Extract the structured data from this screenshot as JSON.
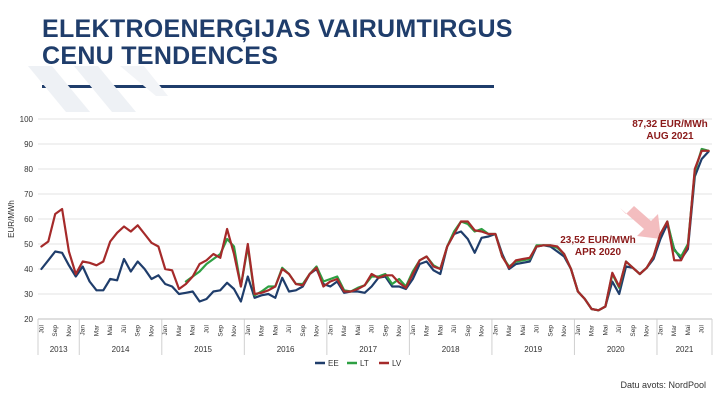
{
  "slide": {
    "title_line1": "ELEKTROENERĢIJAS VAIRUMTIRGUS",
    "title_line2": "CENU TENDENCES",
    "source": "Datu avots: NordPool"
  },
  "colors": {
    "title": "#1f3d6b",
    "EE": "#1f3d6b",
    "LT": "#2ea043",
    "LV": "#a52a2a",
    "annotation": "#8b1a1a",
    "arrow": "#f2b6b8"
  },
  "chart_data": {
    "type": "line",
    "ylabel": "EUR/MWh",
    "ylim": [
      20,
      100
    ],
    "yticks": [
      20,
      30,
      40,
      50,
      60,
      70,
      80,
      90,
      100
    ],
    "grid": true,
    "legend_position": "bottom",
    "month_ticks": [
      {
        "label": "Jūl",
        "index": 0
      },
      {
        "label": "Sep",
        "index": 2
      },
      {
        "label": "Nov",
        "index": 4
      },
      {
        "label": "Jan",
        "index": 6
      },
      {
        "label": "Mar",
        "index": 8
      },
      {
        "label": "Mai",
        "index": 10
      },
      {
        "label": "Jūl",
        "index": 12
      },
      {
        "label": "Sep",
        "index": 14
      },
      {
        "label": "Nov",
        "index": 16
      },
      {
        "label": "Jan",
        "index": 18
      },
      {
        "label": "Mar",
        "index": 20
      },
      {
        "label": "Mai",
        "index": 22
      },
      {
        "label": "Jūl",
        "index": 24
      },
      {
        "label": "Sep",
        "index": 26
      },
      {
        "label": "Nov",
        "index": 28
      },
      {
        "label": "Jan",
        "index": 30
      },
      {
        "label": "Mar",
        "index": 32
      },
      {
        "label": "Mai",
        "index": 34
      },
      {
        "label": "Jūl",
        "index": 36
      },
      {
        "label": "Sep",
        "index": 38
      },
      {
        "label": "Nov",
        "index": 40
      },
      {
        "label": "Jan",
        "index": 42
      },
      {
        "label": "Mar",
        "index": 44
      },
      {
        "label": "Mai",
        "index": 46
      },
      {
        "label": "Jūl",
        "index": 48
      },
      {
        "label": "Sep",
        "index": 50
      },
      {
        "label": "Nov",
        "index": 52
      },
      {
        "label": "Jan",
        "index": 54
      },
      {
        "label": "Mar",
        "index": 56
      },
      {
        "label": "Mai",
        "index": 58
      },
      {
        "label": "Jūl",
        "index": 60
      },
      {
        "label": "Sep",
        "index": 62
      },
      {
        "label": "Nov",
        "index": 64
      },
      {
        "label": "Jan",
        "index": 66
      },
      {
        "label": "Mar",
        "index": 68
      },
      {
        "label": "Mai",
        "index": 70
      },
      {
        "label": "Jūl",
        "index": 72
      },
      {
        "label": "Sep",
        "index": 74
      },
      {
        "label": "Nov",
        "index": 76
      },
      {
        "label": "Jan",
        "index": 78
      },
      {
        "label": "Mar",
        "index": 80
      },
      {
        "label": "Mai",
        "index": 82
      },
      {
        "label": "Jūl",
        "index": 84
      },
      {
        "label": "Sep",
        "index": 86
      },
      {
        "label": "Nov",
        "index": 88
      },
      {
        "label": "Jan",
        "index": 90
      },
      {
        "label": "Mar",
        "index": 92
      },
      {
        "label": "Mai",
        "index": 94
      },
      {
        "label": "Jūl",
        "index": 96
      }
    ],
    "years": [
      {
        "label": "2013",
        "start": 0,
        "end": 5
      },
      {
        "label": "2014",
        "start": 6,
        "end": 17
      },
      {
        "label": "2015",
        "start": 18,
        "end": 29
      },
      {
        "label": "2016",
        "start": 30,
        "end": 41
      },
      {
        "label": "2017",
        "start": 42,
        "end": 53
      },
      {
        "label": "2018",
        "start": 54,
        "end": 65
      },
      {
        "label": "2019",
        "start": 66,
        "end": 77
      },
      {
        "label": "2020",
        "start": 78,
        "end": 89
      },
      {
        "label": "2021",
        "start": 90,
        "end": 97
      }
    ],
    "series": [
      {
        "name": "EE",
        "values": [
          40,
          43.5,
          47,
          46.5,
          41.5,
          37,
          41,
          35,
          31.5,
          31.5,
          36,
          35.5,
          44,
          39,
          43,
          40,
          36,
          37.5,
          34,
          33,
          30,
          30.5,
          31,
          27,
          28,
          31,
          31.5,
          34.5,
          32,
          27,
          37,
          28.5,
          29.5,
          30,
          28.5,
          36.5,
          31,
          31.5,
          33,
          38,
          40,
          34,
          33,
          35,
          30.5,
          31,
          31,
          30.5,
          33,
          36.5,
          37,
          33,
          33,
          32,
          36,
          42,
          43,
          39.5,
          38,
          49,
          54,
          55,
          52,
          46.5,
          52.5,
          53,
          54,
          46,
          40,
          42,
          42.5,
          43,
          49,
          49.5,
          49,
          47,
          45,
          40,
          31,
          28,
          24,
          23.5,
          25,
          35,
          30,
          41,
          40.5,
          38,
          40.5,
          44,
          52,
          58,
          48,
          44,
          48,
          77,
          84,
          87
        ]
      },
      {
        "name": "LT",
        "values": [
          null,
          null,
          null,
          null,
          null,
          null,
          null,
          null,
          null,
          null,
          null,
          null,
          null,
          null,
          null,
          null,
          null,
          null,
          null,
          null,
          null,
          35,
          37,
          39,
          42,
          44,
          46,
          52,
          49,
          33,
          49,
          29.5,
          31,
          33,
          33,
          40.5,
          38,
          34,
          34,
          38,
          41,
          35,
          36,
          37,
          31.5,
          31,
          32.5,
          33.5,
          37,
          37,
          38,
          34,
          36,
          33,
          39,
          43.5,
          45,
          41.5,
          40,
          49,
          55,
          59,
          58,
          55,
          56,
          54,
          54,
          45,
          41,
          43,
          43.5,
          44,
          49.5,
          49.5,
          49.5,
          48.5,
          46,
          40,
          31,
          28,
          24,
          23.5,
          25,
          38,
          32.5,
          43,
          40.5,
          38,
          40.5,
          45,
          54,
          59,
          47.5,
          45,
          50,
          79,
          88,
          87.3
        ]
      },
      {
        "name": "LV",
        "values": [
          49,
          51,
          62,
          64,
          47,
          38,
          43,
          42.5,
          41.5,
          43,
          51,
          54.5,
          57,
          55,
          57.5,
          54,
          50.5,
          49,
          40,
          39.5,
          32,
          34,
          37,
          42,
          43.5,
          46,
          44.5,
          56,
          46,
          33,
          50,
          30,
          30.5,
          31.5,
          33,
          40,
          38,
          34,
          33.5,
          38,
          40.5,
          33,
          35,
          36,
          31,
          31,
          32,
          33.5,
          38,
          36.5,
          37.5,
          37.5,
          34.5,
          32.5,
          38,
          43.5,
          45,
          41,
          40,
          49,
          54,
          59,
          59,
          55.5,
          55,
          54,
          54,
          45,
          40.5,
          43.5,
          44,
          44.5,
          49,
          49.5,
          49.5,
          49,
          46,
          40,
          31,
          28,
          24,
          23.5,
          25,
          38.5,
          33,
          43,
          40.5,
          38,
          40.5,
          45,
          54,
          59,
          43.5,
          43.5,
          49,
          80,
          87.3,
          87.3
        ]
      }
    ],
    "annotations": [
      {
        "line1": "87,32 EUR/MWh",
        "line2": "AUG 2021",
        "x": 96,
        "y": 87.32
      },
      {
        "line1": "23,52 EUR/MWh",
        "line2": "APR 2020",
        "x": 81,
        "y": 23.52
      }
    ]
  }
}
